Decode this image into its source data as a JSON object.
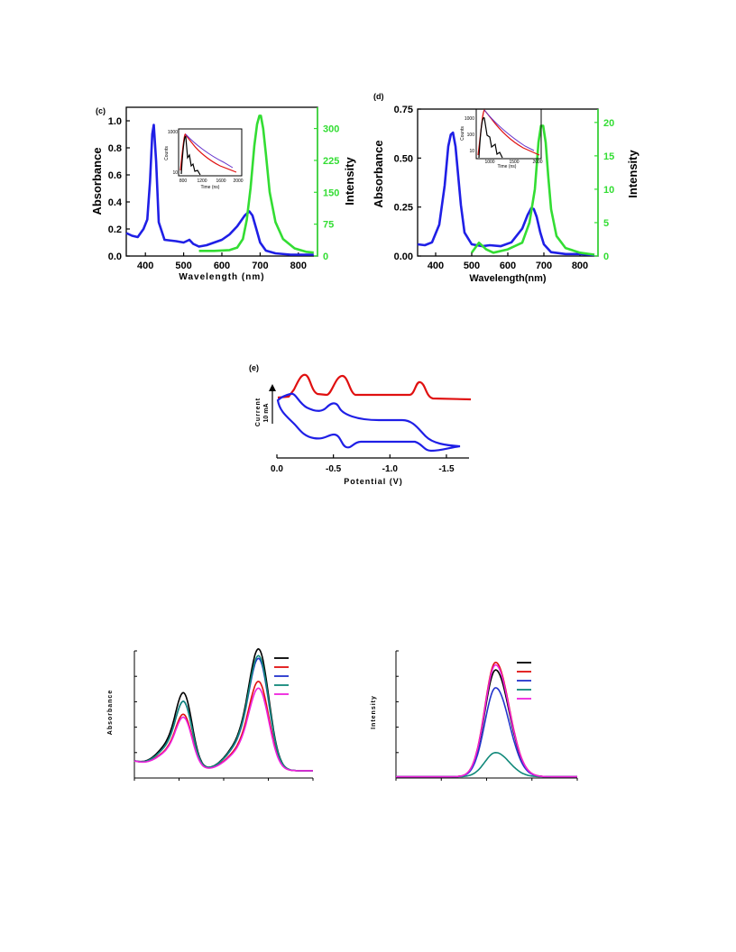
{
  "chart_data": [
    {
      "panel": "(c)",
      "type": "line",
      "xlabel": "Wavelength (nm)",
      "ylabel": "Absorbance",
      "y2label": "Intensity",
      "xlim": [
        350,
        850
      ],
      "ylim": [
        0,
        1.1
      ],
      "y2lim": [
        0,
        350
      ],
      "xticks": [
        "400",
        "500",
        "600",
        "700",
        "800"
      ],
      "yticks": [
        "0.0",
        "0.2",
        "0.4",
        "0.6",
        "0.8",
        "1.0"
      ],
      "y2ticks": [
        "0",
        "75",
        "150",
        "225",
        "300"
      ],
      "series": [
        {
          "axis": "left",
          "color": "#1f1fe6",
          "x": [
            350,
            365,
            380,
            395,
            405,
            412,
            418,
            422,
            428,
            435,
            450,
            480,
            500,
            515,
            525,
            540,
            560,
            580,
            600,
            620,
            640,
            660,
            672,
            680,
            690,
            700,
            715,
            740,
            780,
            840
          ],
          "y": [
            0.17,
            0.15,
            0.14,
            0.2,
            0.27,
            0.55,
            0.9,
            0.97,
            0.7,
            0.25,
            0.12,
            0.11,
            0.1,
            0.12,
            0.09,
            0.07,
            0.08,
            0.1,
            0.12,
            0.16,
            0.22,
            0.3,
            0.33,
            0.3,
            0.2,
            0.1,
            0.04,
            0.02,
            0.01,
            0.01
          ]
        },
        {
          "axis": "right",
          "color": "#33dd33",
          "x": [
            540,
            580,
            620,
            640,
            655,
            665,
            675,
            685,
            692,
            698,
            702,
            708,
            715,
            725,
            740,
            760,
            790,
            820,
            840
          ],
          "y": [
            12,
            12,
            14,
            20,
            40,
            85,
            160,
            260,
            310,
            330,
            330,
            300,
            240,
            150,
            80,
            40,
            18,
            10,
            8
          ]
        }
      ],
      "inset": {
        "type": "line",
        "xlabel": "Time (ns)",
        "ylabel": "Counts",
        "xticks": [
          "800",
          "1200",
          "1600",
          "2000"
        ],
        "yticks": [
          "1000",
          "100",
          "10"
        ],
        "series_colors": [
          "#000000",
          "#e01010",
          "#6633cc"
        ]
      }
    },
    {
      "panel": "(d)",
      "type": "line",
      "xlabel": "Wavelength(nm)",
      "ylabel": "Absorbance",
      "y2label": "Intensity",
      "xlim": [
        350,
        850
      ],
      "ylim": [
        0,
        0.75
      ],
      "y2lim": [
        0,
        22
      ],
      "xticks": [
        "400",
        "500",
        "600",
        "700",
        "800"
      ],
      "yticks": [
        "0.00",
        "0.25",
        "0.50",
        "0.75"
      ],
      "y2ticks": [
        "0",
        "5",
        "10",
        "15",
        "20"
      ],
      "series": [
        {
          "axis": "left",
          "color": "#1f1fe6",
          "x": [
            350,
            370,
            390,
            410,
            425,
            435,
            442,
            448,
            455,
            462,
            470,
            480,
            500,
            530,
            550,
            580,
            610,
            640,
            655,
            665,
            672,
            680,
            690,
            700,
            720,
            760,
            800,
            840
          ],
          "y": [
            0.06,
            0.055,
            0.07,
            0.16,
            0.36,
            0.56,
            0.62,
            0.63,
            0.56,
            0.42,
            0.26,
            0.12,
            0.06,
            0.05,
            0.055,
            0.05,
            0.07,
            0.14,
            0.21,
            0.245,
            0.24,
            0.2,
            0.12,
            0.06,
            0.02,
            0.01,
            0.01,
            0.005
          ]
        },
        {
          "axis": "right",
          "color": "#33dd33",
          "x": [
            500,
            520,
            540,
            560,
            600,
            640,
            660,
            675,
            685,
            692,
            698,
            705,
            712,
            720,
            735,
            760,
            800,
            840
          ],
          "y": [
            0.5,
            2,
            1,
            0.5,
            1,
            2,
            5,
            10,
            17,
            19.5,
            19.5,
            17,
            12,
            7,
            3,
            1.2,
            0.5,
            0.2
          ]
        }
      ],
      "inset": {
        "type": "line",
        "xlabel": "Time (ns)",
        "ylabel": "Counts",
        "xticks": [
          "1000",
          "1500",
          "2000"
        ],
        "yticks": [
          "1000",
          "100",
          "10"
        ],
        "series_colors": [
          "#000000",
          "#e01010",
          "#6633cc"
        ]
      }
    },
    {
      "panel": "(e)",
      "type": "line",
      "xlabel": "Potential (V)",
      "ylabel": "Current",
      "scale_bar": "10 mA",
      "xlim": [
        0.0,
        -1.7
      ],
      "xticks": [
        "0.0",
        "-0.5",
        "-1.0",
        "-1.5"
      ],
      "series": [
        {
          "color": "#e01010",
          "note": "differential pulse voltammogram",
          "peaks_V": [
            -0.26,
            -0.59,
            -1.25
          ]
        },
        {
          "color": "#1f1fe6",
          "note": "cyclic voltammogram",
          "peaks_V": [
            -0.17,
            -0.48,
            -0.6,
            -1.18,
            -1.28
          ]
        }
      ]
    },
    {
      "panel": "bottom-left",
      "type": "line",
      "ylabel": "Absorbance",
      "series": [
        {
          "color": "#000000",
          "peaks": [
            0.53,
            0.9
          ]
        },
        {
          "color": "#e01010",
          "peaks": [
            0.38,
            0.66
          ]
        },
        {
          "color": "#2233cc",
          "peaks": [
            0.47,
            0.83
          ]
        },
        {
          "color": "#11897a",
          "peaks": [
            0.47,
            0.85
          ]
        },
        {
          "color": "#ee22dd",
          "peaks": [
            0.36,
            0.61
          ]
        }
      ]
    },
    {
      "panel": "bottom-right",
      "type": "line",
      "ylabel": "Intensity",
      "series": [
        {
          "color": "#000000",
          "peak": 0.84
        },
        {
          "color": "#e01010",
          "peak": 0.9
        },
        {
          "color": "#2233cc",
          "peak": 0.7
        },
        {
          "color": "#11897a",
          "peak": 0.19
        },
        {
          "color": "#ee22dd",
          "peak": 0.88
        }
      ]
    }
  ]
}
